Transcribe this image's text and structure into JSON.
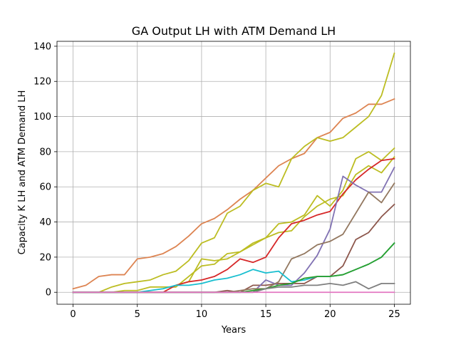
{
  "chart_data": {
    "type": "line",
    "title": "GA Output LH with ATM Demand LH",
    "xlabel": "Years",
    "ylabel": "Capacity K LH and ATM Demand LH",
    "xlim": [
      -1.25,
      26.25
    ],
    "ylim": [
      -6.8,
      142.8
    ],
    "xticks": [
      0,
      5,
      10,
      15,
      20,
      25
    ],
    "yticks": [
      0,
      20,
      40,
      60,
      80,
      100,
      120,
      140
    ],
    "grid": true,
    "legend": "none",
    "x": [
      0,
      1,
      2,
      3,
      4,
      5,
      6,
      7,
      8,
      9,
      10,
      11,
      12,
      13,
      14,
      15,
      16,
      17,
      18,
      19,
      20,
      21,
      22,
      23,
      24,
      25
    ],
    "series": [
      {
        "color": "#dd8452",
        "values": [
          2,
          4,
          9,
          10,
          10,
          19,
          20,
          22,
          26,
          32,
          39,
          42,
          47,
          53,
          58,
          65,
          72,
          76,
          79,
          88,
          91,
          99,
          102,
          107,
          107,
          110
        ]
      },
      {
        "color": "#bcbd22",
        "values": [
          0,
          0,
          0,
          3,
          5,
          6,
          7,
          10,
          12,
          18,
          28,
          31,
          45,
          49,
          58,
          62,
          60,
          76,
          83,
          88,
          86,
          88,
          94,
          100,
          112,
          136
        ]
      },
      {
        "color": "#bcbd22",
        "values": [
          0,
          0,
          0,
          0,
          1,
          1,
          3,
          3,
          3,
          9,
          15,
          16,
          22,
          23,
          28,
          31,
          39,
          40,
          44,
          55,
          49,
          58,
          76,
          80,
          75,
          82
        ]
      },
      {
        "color": "#bcbd22",
        "values": [
          0,
          0,
          0,
          0,
          0,
          0,
          0,
          0,
          4,
          6,
          19,
          18,
          19,
          23,
          27,
          31,
          34,
          35,
          43,
          49,
          53,
          55,
          67,
          72,
          68,
          77
        ]
      },
      {
        "color": "#d62728",
        "values": [
          0,
          0,
          0,
          0,
          0,
          0,
          0,
          0,
          4,
          6,
          7,
          9,
          13,
          19,
          17,
          20,
          31,
          39,
          41,
          44,
          46,
          56,
          64,
          70,
          75,
          76
        ]
      },
      {
        "color": "#8c564b",
        "values": [
          0,
          0,
          0,
          0,
          0,
          0,
          0,
          0,
          0,
          0,
          0,
          0,
          1,
          0,
          4,
          4,
          5,
          5,
          5,
          9,
          9,
          15,
          30,
          34,
          43,
          50
        ]
      },
      {
        "color": "#8172b3",
        "values": [
          0,
          0,
          0,
          0,
          0,
          0,
          0,
          0,
          0,
          0,
          0,
          0,
          0,
          0,
          0,
          7,
          4,
          4,
          11,
          21,
          36,
          66,
          61,
          57,
          57,
          71
        ]
      },
      {
        "color": "#937860",
        "values": [
          0,
          0,
          0,
          0,
          0,
          0,
          0,
          0,
          0,
          0,
          0,
          0,
          0,
          1,
          2,
          2,
          6,
          19,
          22,
          27,
          29,
          33,
          45,
          57,
          51,
          62
        ]
      },
      {
        "color": "#17becf",
        "values": [
          0,
          0,
          0,
          0,
          0,
          0,
          1,
          2,
          4,
          4,
          5,
          7,
          8,
          10,
          13,
          11,
          12,
          6,
          7,
          9,
          9,
          10,
          13,
          16,
          20,
          28
        ]
      },
      {
        "color": "#2ca02c",
        "values": [
          0,
          0,
          0,
          0,
          0,
          0,
          0,
          0,
          0,
          0,
          0,
          0,
          0,
          0,
          1,
          2,
          4,
          5,
          8,
          9,
          9,
          10,
          13,
          16,
          20,
          28
        ]
      },
      {
        "color": "#7f7f7f",
        "values": [
          0,
          0,
          0,
          0,
          0,
          0,
          0,
          0,
          0,
          0,
          0,
          0,
          0,
          0,
          0,
          2,
          3,
          3,
          4,
          4,
          5,
          4,
          6,
          2,
          5,
          5
        ]
      },
      {
        "color": "#e377c2",
        "values": [
          0,
          0,
          0,
          0,
          0,
          0,
          0,
          0,
          0,
          0,
          0,
          0,
          0,
          0,
          0,
          0,
          0,
          0,
          0,
          0,
          0,
          0,
          0,
          0,
          0,
          0
        ]
      }
    ]
  }
}
